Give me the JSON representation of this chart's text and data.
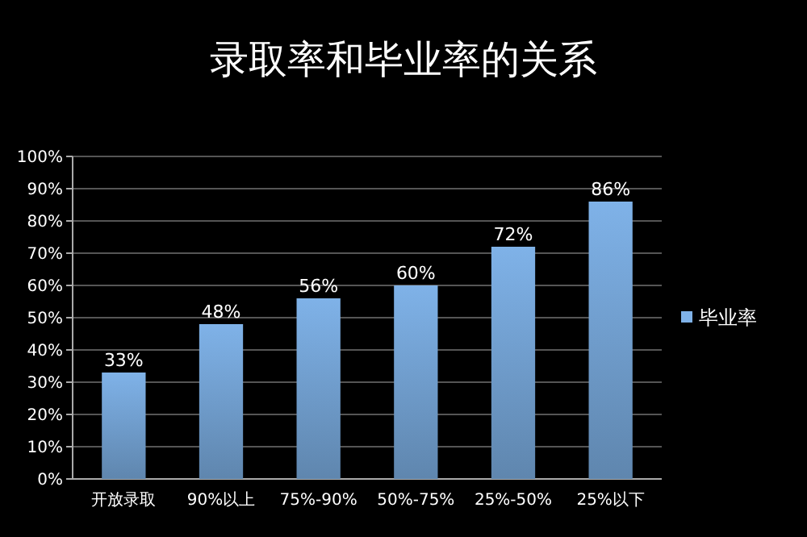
{
  "chart_data": {
    "type": "bar",
    "title": "录取率和毕业率的关系",
    "categories": [
      "开放录取",
      "90%以上",
      "75%-90%",
      "50%-75%",
      "25%-50%",
      "25%以下"
    ],
    "series": [
      {
        "name": "毕业率",
        "color": "#7fb2e8",
        "values": [
          33,
          48,
          56,
          60,
          72,
          86
        ],
        "value_labels": [
          "33%",
          "48%",
          "56%",
          "60%",
          "72%",
          "86%"
        ]
      }
    ],
    "ylim": [
      0,
      100
    ],
    "yticks": [
      {
        "value": 0,
        "label": "0%"
      },
      {
        "value": 10,
        "label": "10%"
      },
      {
        "value": 20,
        "label": "20%"
      },
      {
        "value": 30,
        "label": "30%"
      },
      {
        "value": 40,
        "label": "40%"
      },
      {
        "value": 50,
        "label": "50%"
      },
      {
        "value": 60,
        "label": "60%"
      },
      {
        "value": 70,
        "label": "70%"
      },
      {
        "value": 80,
        "label": "80%"
      },
      {
        "value": 90,
        "label": "90%"
      },
      {
        "value": 100,
        "label": "100%"
      }
    ],
    "grid": "y",
    "legend": "right"
  }
}
